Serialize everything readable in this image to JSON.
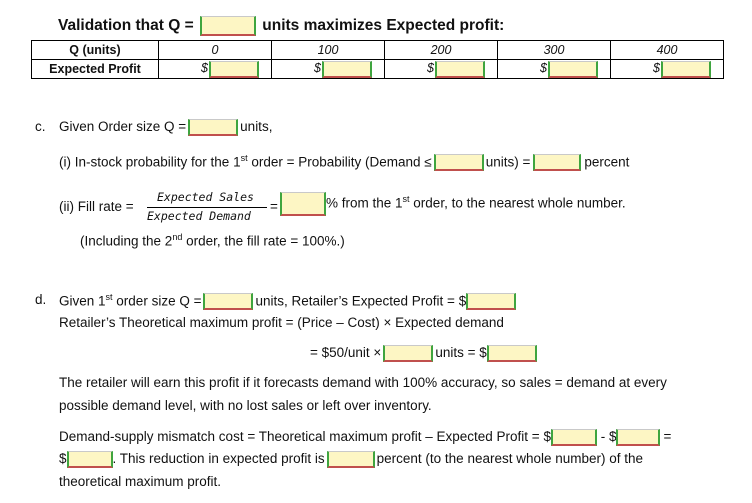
{
  "validation": {
    "title_pre": "Validation that Q =",
    "title_post": "units maximizes Expected profit:",
    "row_q_label": "Q (units)",
    "row_profit_label": "Expected  Profit",
    "q_values": [
      "0",
      "100",
      "200",
      "300",
      "400"
    ],
    "currency": "$"
  },
  "part_c": {
    "letter": "c.",
    "line1_pre": "Given Order size Q =",
    "line1_post": "units,",
    "line2_pre": "(i)  In-stock probability for the 1",
    "line2_sup": "st",
    "line2_mid1": " order = Probability (Demand ≤",
    "line2_mid2": "units) =",
    "line2_post": "percent",
    "line3_pre": "(ii)  Fill rate =",
    "frac_num": "Expected Sales",
    "frac_den": "Expected Demand",
    "line3_eq": "=",
    "line3_post": "% from the 1",
    "line3_sup": "st",
    "line3_end": " order, to the nearest whole number.",
    "line4_pre": "(Including the 2",
    "line4_sup": "nd",
    "line4_post": " order, the fill rate = 100%.)"
  },
  "part_d": {
    "letter": "d.",
    "line1_pre": "Given 1",
    "line1_sup": "st",
    "line1_mid": " order size Q =",
    "line1_post": "units, Retailer’s Expected Profit = $",
    "line2": "Retailer’s Theoretical maximum profit = (Price – Cost) × Expected demand",
    "line3_pre": "= $50/unit  ×",
    "line3_post": "units = $",
    "para1_a": "The retailer will earn this profit if it forecasts demand with 100% accuracy, so sales = demand at every",
    "para1_b": "possible demand level, with no lost sales or left over inventory.",
    "para2_a": "Demand-supply mismatch cost = Theoretical maximum profit – Expected Profit = $",
    "para2_minus": " - $",
    "para2_eq": "=",
    "para2_b_pre": "$",
    "para2_b_mid": ". This reduction in expected profit is",
    "para2_b_post": "percent (to the nearest whole number) of the",
    "para2_c": "theoretical maximum profit."
  }
}
